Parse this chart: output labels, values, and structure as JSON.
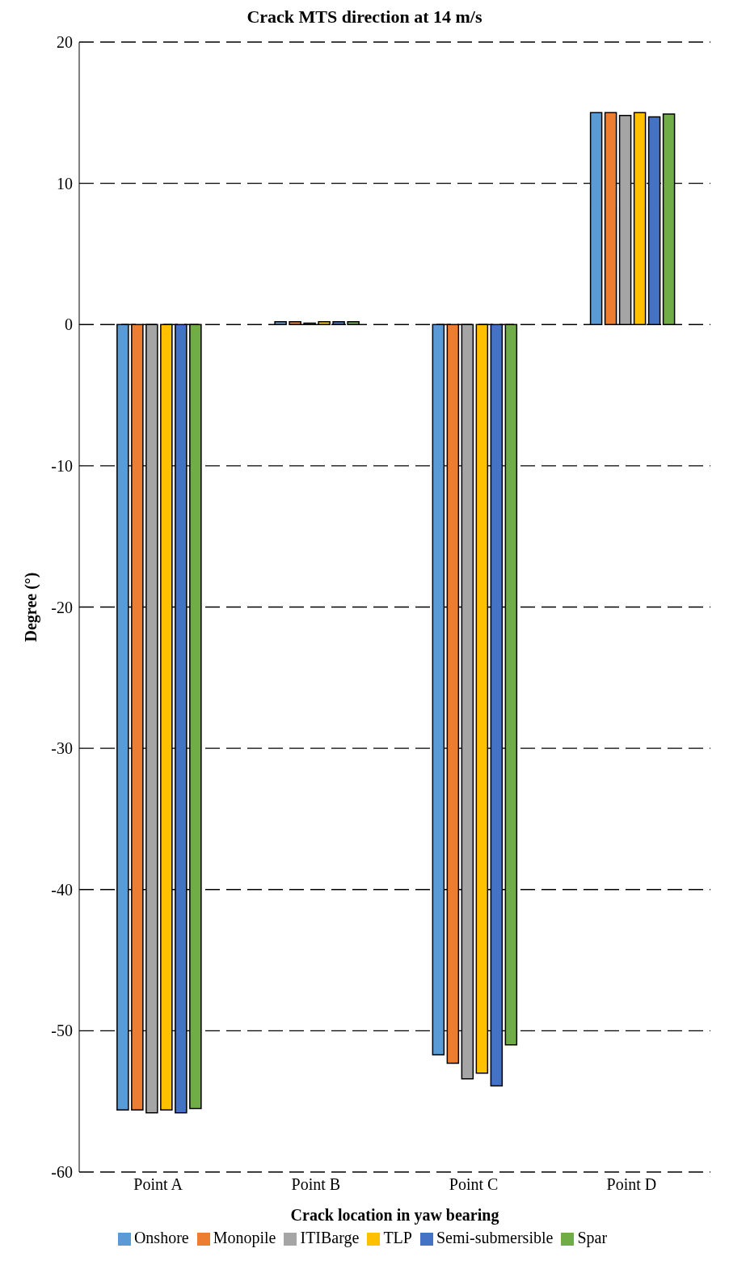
{
  "chart_data": {
    "type": "bar",
    "title": "Crack MTS direction at 14 m/s",
    "xlabel": "Crack location in yaw bearing",
    "ylabel": "Degree (°)",
    "categories": [
      "Point A",
      "Point B",
      "Point C",
      "Point D"
    ],
    "series": [
      {
        "name": "Onshore",
        "color": "#5b9bd5",
        "values": [
          -55.6,
          0.2,
          -51.7,
          15.0
        ]
      },
      {
        "name": "Monopile",
        "color": "#ed7d31",
        "values": [
          -55.6,
          0.2,
          -52.3,
          15.0
        ]
      },
      {
        "name": "ITIBarge",
        "color": "#a5a5a5",
        "values": [
          -55.8,
          0.1,
          -53.4,
          14.8
        ]
      },
      {
        "name": "TLP",
        "color": "#ffc000",
        "values": [
          -55.6,
          0.2,
          -53.0,
          15.0
        ]
      },
      {
        "name": "Semi-submersible",
        "color": "#4472c4",
        "values": [
          -55.8,
          0.2,
          -53.9,
          14.7
        ]
      },
      {
        "name": "Spar",
        "color": "#70ad47",
        "values": [
          -55.5,
          0.2,
          -51.0,
          14.9
        ]
      }
    ],
    "ylim": [
      -60,
      20
    ],
    "yticks": [
      -60,
      -50,
      -40,
      -30,
      -20,
      -10,
      0,
      10,
      20
    ],
    "grid": "y",
    "legend": "bottom"
  }
}
